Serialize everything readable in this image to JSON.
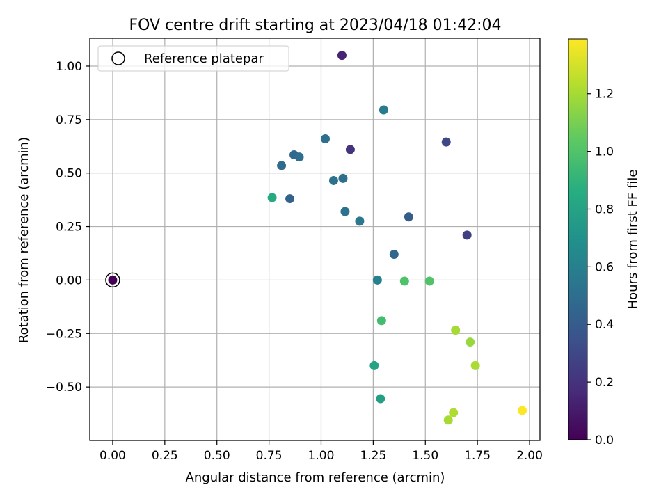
{
  "chart_data": {
    "type": "scatter",
    "title": "FOV centre drift starting at 2023/04/18 01:42:04",
    "xlabel": "Angular distance from reference (arcmin)",
    "ylabel": "Rotation from reference (arcmin)",
    "xlim": [
      -0.11,
      2.05
    ],
    "ylim": [
      -0.75,
      1.13
    ],
    "x_ticks": [
      0.0,
      0.25,
      0.5,
      0.75,
      1.0,
      1.25,
      1.5,
      1.75,
      2.0
    ],
    "x_tick_labels": [
      "0.00",
      "0.25",
      "0.50",
      "0.75",
      "1.00",
      "1.25",
      "1.50",
      "1.75",
      "2.00"
    ],
    "y_ticks": [
      -0.5,
      -0.25,
      0.0,
      0.25,
      0.5,
      0.75,
      1.0
    ],
    "y_tick_labels": [
      "−0.50",
      "−0.25",
      "0.00",
      "0.25",
      "0.50",
      "0.75",
      "1.00"
    ],
    "grid": true,
    "legend": {
      "placement": "top-left",
      "entries": [
        "Reference platepar"
      ]
    },
    "reference_point": {
      "x": 0.0,
      "y": 0.0
    },
    "colorbar": {
      "label": "Hours from first FF file",
      "range": [
        0.0,
        1.39
      ],
      "ticks": [
        0.0,
        0.2,
        0.4,
        0.6,
        0.8,
        1.0,
        1.2
      ],
      "tick_labels": [
        "0.0",
        "0.2",
        "0.4",
        "0.6",
        "0.8",
        "1.0",
        "1.2"
      ],
      "colormap": "viridis"
    },
    "points": [
      {
        "x": 0.0,
        "y": 0.0,
        "c": 0.0
      },
      {
        "x": 1.1,
        "y": 1.05,
        "c": 0.14
      },
      {
        "x": 1.14,
        "y": 0.61,
        "c": 0.2
      },
      {
        "x": 1.7,
        "y": 0.21,
        "c": 0.26
      },
      {
        "x": 1.6,
        "y": 0.645,
        "c": 0.3
      },
      {
        "x": 1.42,
        "y": 0.295,
        "c": 0.4
      },
      {
        "x": 1.35,
        "y": 0.12,
        "c": 0.46
      },
      {
        "x": 0.85,
        "y": 0.38,
        "c": 0.44
      },
      {
        "x": 0.81,
        "y": 0.535,
        "c": 0.48
      },
      {
        "x": 0.87,
        "y": 0.585,
        "c": 0.47
      },
      {
        "x": 0.895,
        "y": 0.575,
        "c": 0.5
      },
      {
        "x": 1.02,
        "y": 0.66,
        "c": 0.5
      },
      {
        "x": 1.06,
        "y": 0.465,
        "c": 0.52
      },
      {
        "x": 1.105,
        "y": 0.475,
        "c": 0.51
      },
      {
        "x": 1.115,
        "y": 0.32,
        "c": 0.52
      },
      {
        "x": 1.185,
        "y": 0.275,
        "c": 0.55
      },
      {
        "x": 1.3,
        "y": 0.795,
        "c": 0.58
      },
      {
        "x": 1.27,
        "y": 0.0,
        "c": 0.6
      },
      {
        "x": 1.255,
        "y": -0.4,
        "c": 0.8
      },
      {
        "x": 1.285,
        "y": -0.555,
        "c": 0.78
      },
      {
        "x": 0.765,
        "y": 0.385,
        "c": 0.84
      },
      {
        "x": 1.29,
        "y": -0.19,
        "c": 0.96
      },
      {
        "x": 1.4,
        "y": -0.005,
        "c": 0.99
      },
      {
        "x": 1.52,
        "y": -0.005,
        "c": 1.0
      },
      {
        "x": 1.645,
        "y": -0.235,
        "c": 1.2
      },
      {
        "x": 1.715,
        "y": -0.29,
        "c": 1.17
      },
      {
        "x": 1.74,
        "y": -0.4,
        "c": 1.21
      },
      {
        "x": 1.635,
        "y": -0.62,
        "c": 1.22
      },
      {
        "x": 1.61,
        "y": -0.655,
        "c": 1.2
      },
      {
        "x": 1.965,
        "y": -0.61,
        "c": 1.39
      }
    ]
  }
}
